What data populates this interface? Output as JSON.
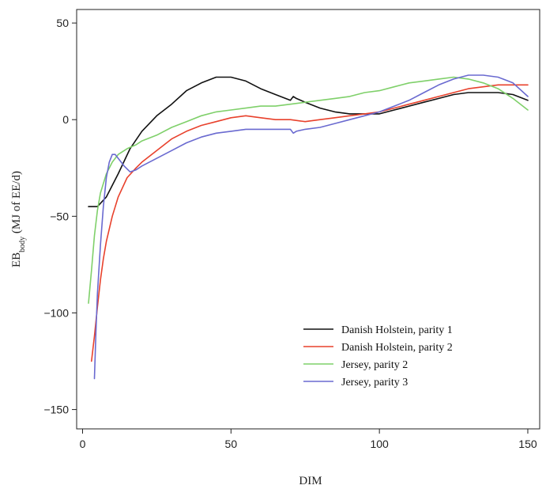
{
  "chart_data": {
    "type": "line",
    "title": "",
    "xlabel": "DIM",
    "ylabel_main": "EB",
    "ylabel_sub": "body",
    "ylabel_rest": " (MJ of EE/d)",
    "xlim": [
      -2,
      154
    ],
    "ylim": [
      -160,
      57
    ],
    "x_ticks": [
      0,
      50,
      100,
      150
    ],
    "y_ticks": [
      -150,
      -100,
      -50,
      0,
      50
    ],
    "grid": false,
    "legend_position": "bottom-right",
    "series": [
      {
        "name": "Danish Holstein, parity 1",
        "color": "#111111",
        "x": [
          2,
          5,
          8,
          12,
          16,
          20,
          25,
          30,
          35,
          40,
          45,
          50,
          55,
          60,
          65,
          70,
          71,
          72,
          75,
          80,
          85,
          90,
          95,
          100,
          105,
          110,
          115,
          120,
          125,
          130,
          135,
          140,
          145,
          150
        ],
        "y": [
          -45,
          -45,
          -40,
          -28,
          -15,
          -6,
          2,
          8,
          15,
          19,
          22,
          22,
          20,
          16,
          13,
          10,
          12,
          11,
          9,
          6,
          4,
          3,
          3,
          3,
          5,
          7,
          9,
          11,
          13,
          14,
          14,
          14,
          13,
          10
        ]
      },
      {
        "name": "Danish Holstein, parity 2",
        "color": "#e8412c",
        "x": [
          3,
          4,
          5,
          6,
          7,
          8,
          10,
          12,
          15,
          18,
          20,
          25,
          30,
          35,
          40,
          45,
          50,
          55,
          60,
          65,
          70,
          75,
          80,
          85,
          90,
          95,
          100,
          105,
          110,
          115,
          120,
          125,
          130,
          135,
          140,
          145,
          150
        ],
        "y": [
          -125,
          -112,
          -97,
          -83,
          -72,
          -63,
          -50,
          -40,
          -30,
          -25,
          -22,
          -16,
          -10,
          -6,
          -3,
          -1,
          1,
          2,
          1,
          0,
          0,
          -1,
          0,
          1,
          2,
          3,
          4,
          6,
          8,
          10,
          12,
          14,
          16,
          17,
          18,
          18,
          18
        ]
      },
      {
        "name": "Jersey, parity 2",
        "color": "#7fd06a",
        "x": [
          2,
          3,
          4,
          5,
          6,
          8,
          10,
          12,
          15,
          18,
          20,
          25,
          30,
          35,
          40,
          45,
          50,
          55,
          60,
          65,
          70,
          75,
          80,
          85,
          90,
          95,
          100,
          105,
          110,
          115,
          120,
          125,
          130,
          135,
          140,
          145,
          150
        ],
        "y": [
          -95,
          -78,
          -60,
          -47,
          -38,
          -28,
          -22,
          -18,
          -15,
          -13,
          -11,
          -8,
          -4,
          -1,
          2,
          4,
          5,
          6,
          7,
          7,
          8,
          9,
          10,
          11,
          12,
          14,
          15,
          17,
          19,
          20,
          21,
          22,
          21,
          19,
          16,
          11,
          5
        ]
      },
      {
        "name": "Jersey, parity 3",
        "color": "#6a6ad0",
        "x": [
          4,
          4.5,
          5,
          6,
          7,
          8,
          9,
          10,
          11,
          12,
          14,
          16,
          18,
          20,
          25,
          30,
          35,
          40,
          45,
          50,
          55,
          60,
          65,
          70,
          71,
          72,
          75,
          80,
          85,
          90,
          95,
          100,
          105,
          110,
          115,
          120,
          125,
          130,
          135,
          140,
          145,
          150
        ],
        "y": [
          -134,
          -110,
          -90,
          -65,
          -45,
          -30,
          -22,
          -18,
          -18,
          -20,
          -24,
          -27,
          -26,
          -24,
          -20,
          -16,
          -12,
          -9,
          -7,
          -6,
          -5,
          -5,
          -5,
          -5,
          -7,
          -6,
          -5,
          -4,
          -2,
          0,
          2,
          4,
          7,
          10,
          14,
          18,
          21,
          23,
          23,
          22,
          19,
          12
        ]
      }
    ]
  }
}
